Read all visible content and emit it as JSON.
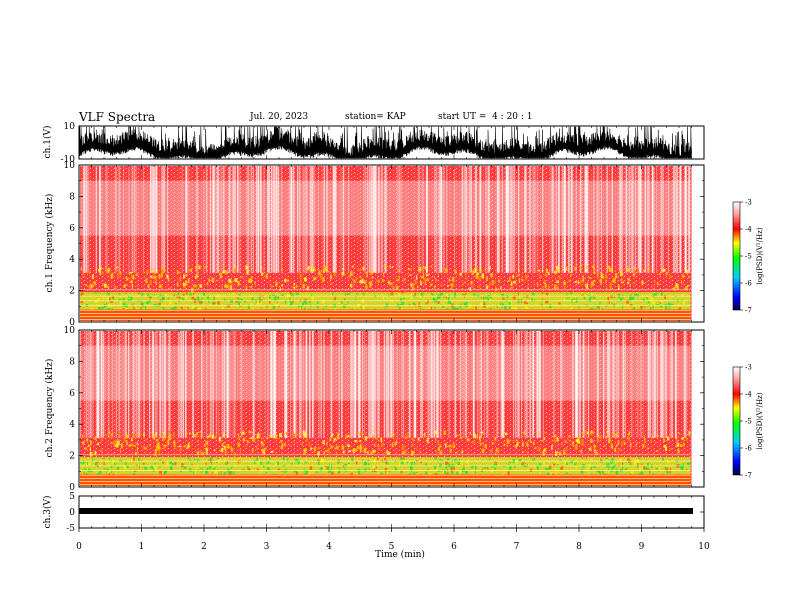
{
  "header": {
    "title": "VLF Spectra",
    "date": "Jul. 20, 2023",
    "station": "station= KAP",
    "start": "start UT =  4 : 20 : 1"
  },
  "chart_data": [
    {
      "type": "line",
      "panel": "ch1-waveform",
      "ylabel": "ch.1(V)",
      "yticks": [
        "10",
        "-10"
      ],
      "ylim": [
        -10,
        10
      ]
    },
    {
      "type": "heatmap",
      "panel": "ch1-spectrogram",
      "ylabel": "ch.1 Frequency (kHz)",
      "yticks": [
        "0",
        "2",
        "4",
        "6",
        "8",
        "10"
      ],
      "ylim": [
        0,
        10
      ],
      "colorbar": {
        "label": "log(PSD)(V²/Hz)",
        "ticks": [
          "-3",
          "-4",
          "-5",
          "-6",
          "-7"
        ],
        "range": [
          -7,
          -3
        ]
      }
    },
    {
      "type": "heatmap",
      "panel": "ch2-spectrogram",
      "ylabel": "ch.2 Frequency (kHz)",
      "yticks": [
        "0",
        "2",
        "4",
        "6",
        "8",
        "10"
      ],
      "ylim": [
        0,
        10
      ],
      "colorbar": {
        "label": "log(PSD)(V²/Hz)",
        "ticks": [
          "-3",
          "-4",
          "-5",
          "-6",
          "-7"
        ],
        "range": [
          -7,
          -3
        ]
      }
    },
    {
      "type": "line",
      "panel": "ch3-waveform",
      "ylabel": "ch.3(V)",
      "yticks": [
        "5",
        "0",
        "-5"
      ],
      "ylim": [
        -5,
        5
      ],
      "xlabel": "Time (min)",
      "xticks": [
        "0",
        "1",
        "2",
        "3",
        "4",
        "5",
        "6",
        "7",
        "8",
        "9",
        "10"
      ],
      "xlim": [
        0,
        10
      ],
      "data_end_min": 9.8
    }
  ]
}
